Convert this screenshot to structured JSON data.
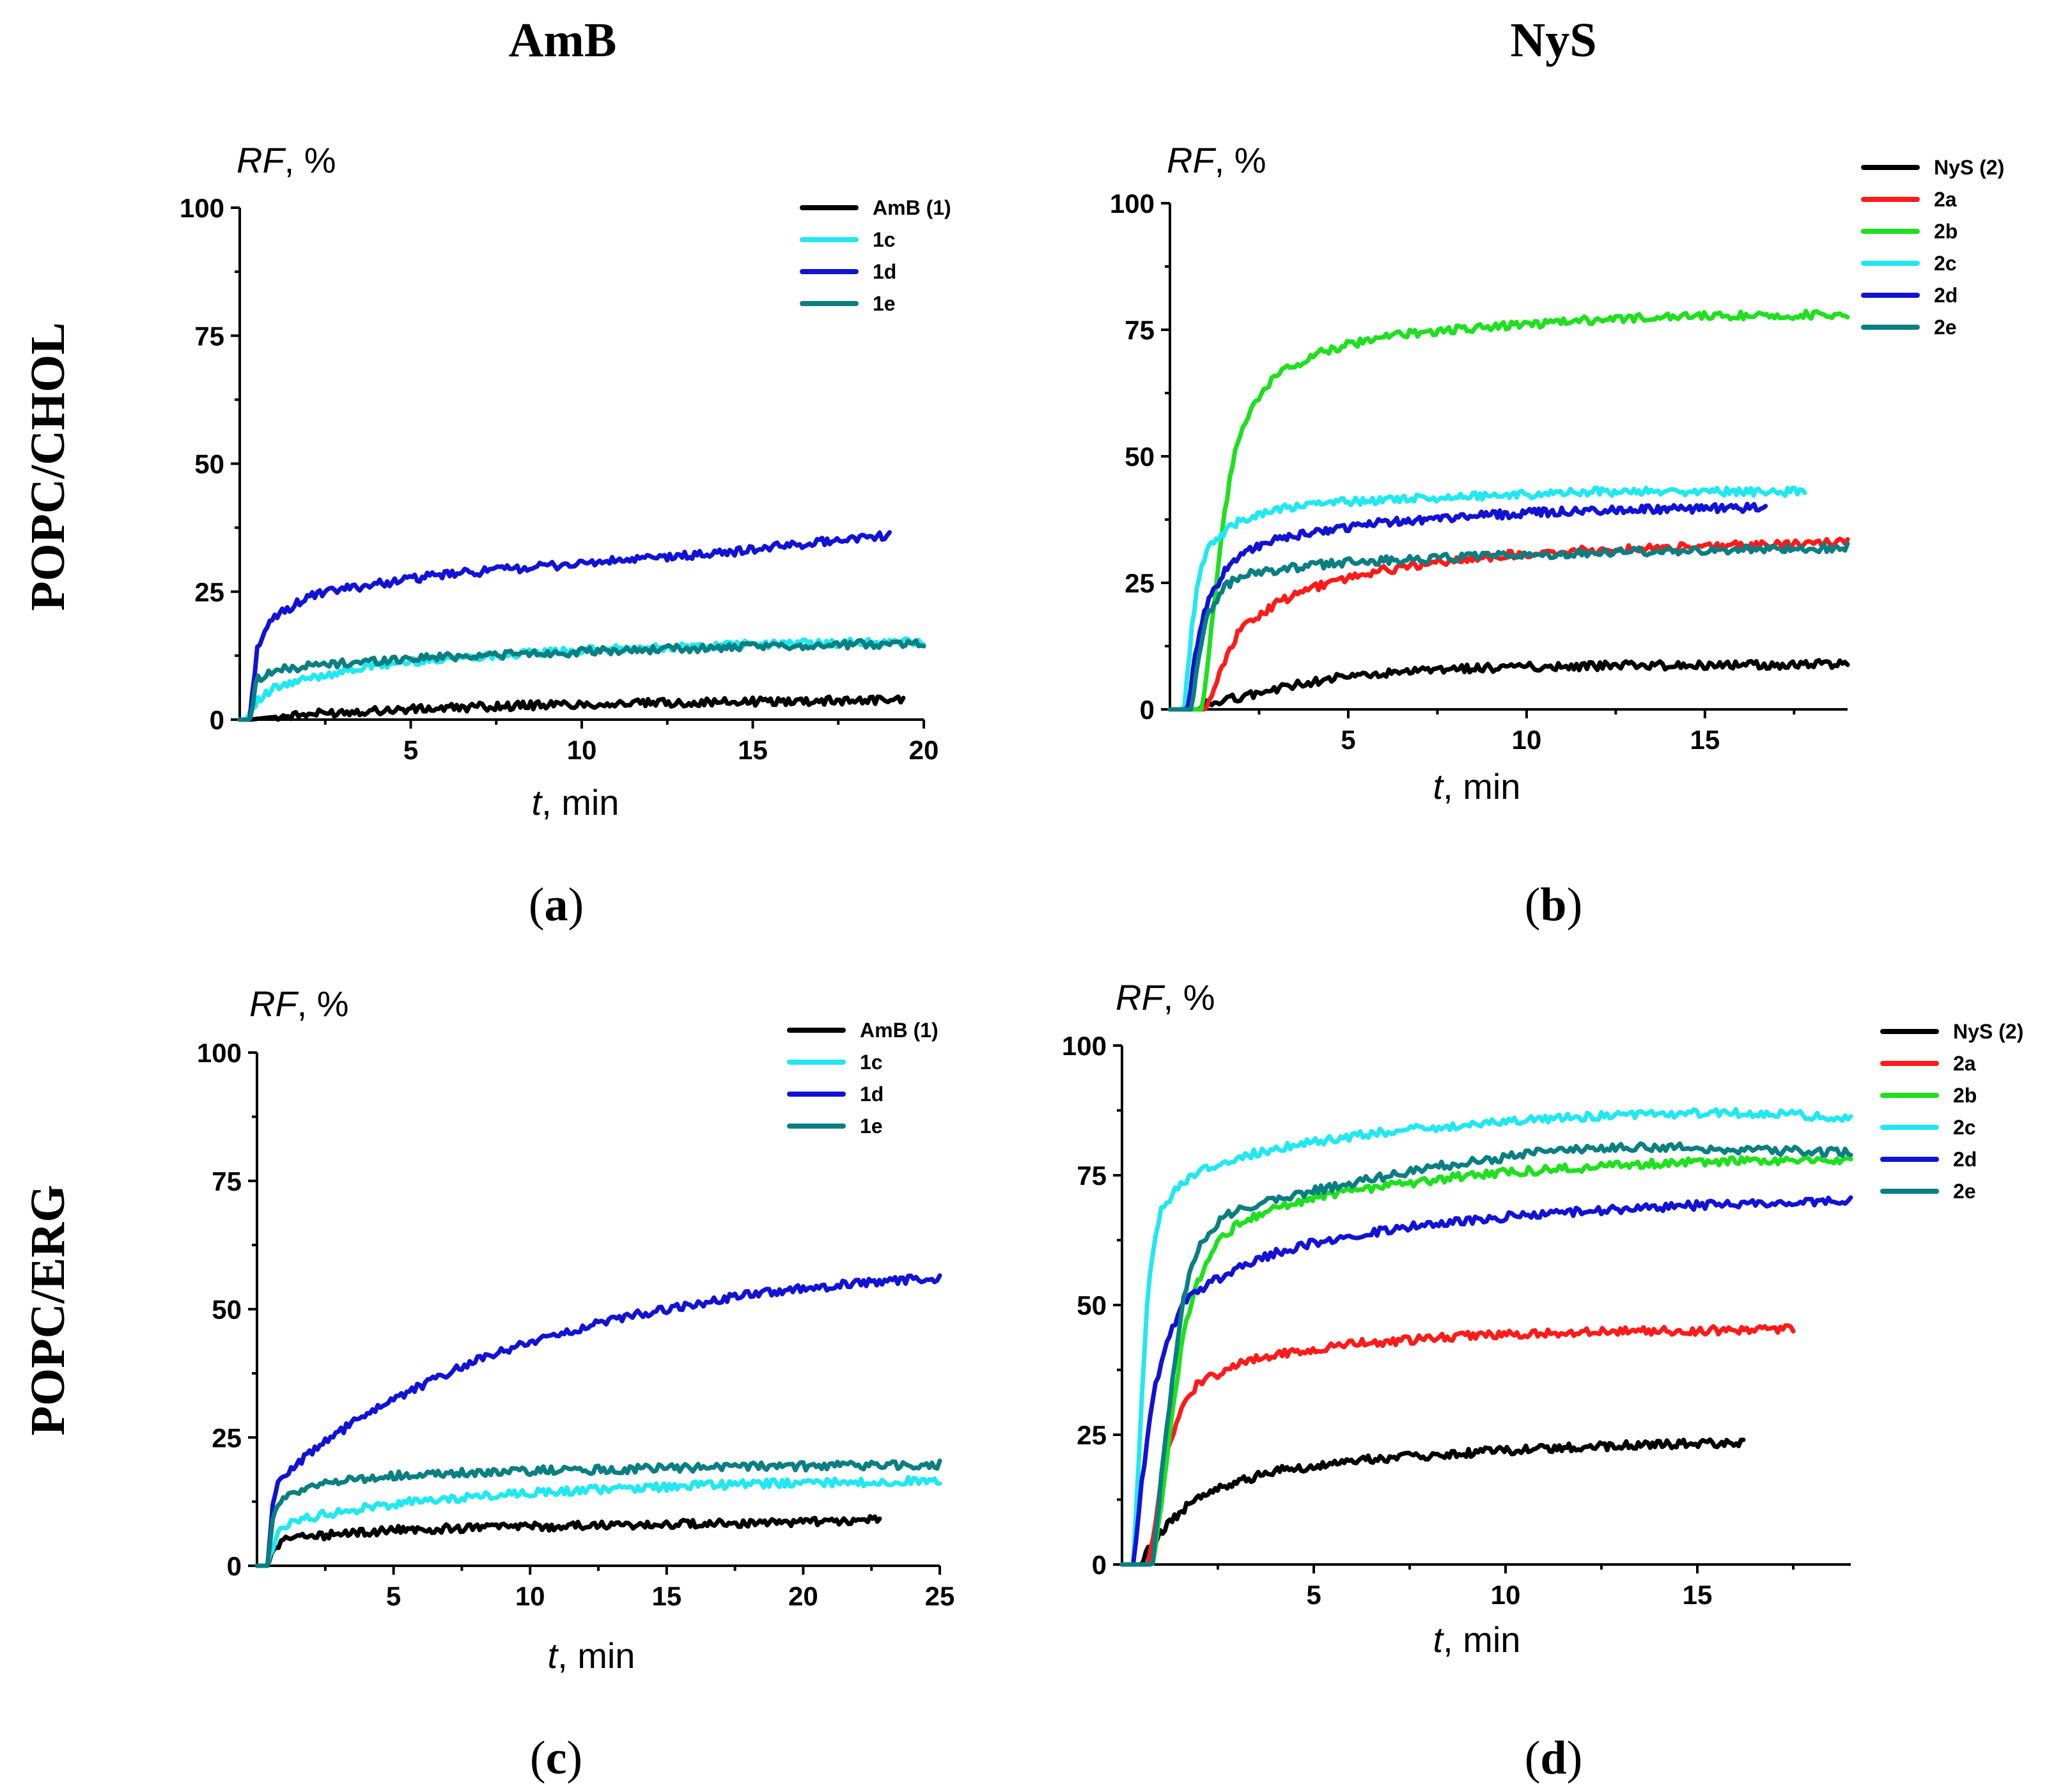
{
  "figure": {
    "column_titles": [
      "AmB",
      "NyS"
    ],
    "row_titles": [
      "POPC/CHOL",
      "POPC/ERG"
    ]
  },
  "colors": {
    "black": "#000000",
    "red": "#ff1a1a",
    "green": "#1ee01e",
    "cyan": "#21e8f0",
    "blue": "#1212d6",
    "teal": "#0a7f82"
  },
  "chart_data": [
    {
      "id": "a",
      "panel_label": "a",
      "type": "line",
      "ylabel_italic": "RF",
      "ylabel_rest": ", %",
      "xlabel_italic": "t",
      "xlabel_rest": ", min",
      "xlim": [
        0,
        20
      ],
      "ylim": [
        0,
        100
      ],
      "xticks": [
        5,
        10,
        15,
        20
      ],
      "yticks": [
        0,
        25,
        50,
        75,
        100
      ],
      "legend_position": "top-right",
      "series": [
        {
          "name": "AmB (1)",
          "color": "black",
          "x": [
            0,
            0.3,
            1,
            2,
            3,
            4,
            5,
            6,
            7,
            8,
            9,
            10,
            11,
            12,
            13,
            14,
            15,
            16,
            17,
            18,
            19,
            19.4
          ],
          "values": [
            0,
            0,
            0.5,
            1,
            1.5,
            1.8,
            2,
            2.2,
            2.5,
            2.7,
            2.9,
            3,
            3.1,
            3.2,
            3.3,
            3.4,
            3.5,
            3.6,
            3.7,
            3.8,
            3.9,
            4
          ]
        },
        {
          "name": "1c",
          "color": "cyan",
          "x": [
            0,
            0.2,
            0.4,
            1,
            2,
            3,
            4,
            5,
            6,
            8,
            10,
            12,
            14,
            16,
            18,
            20
          ],
          "values": [
            0,
            0,
            3,
            6,
            8,
            9.5,
            10.5,
            11.3,
            12,
            12.8,
            13.5,
            14,
            14.5,
            14.8,
            15,
            15.2
          ]
        },
        {
          "name": "1d",
          "color": "blue",
          "x": [
            0,
            0.3,
            0.5,
            1,
            2,
            3,
            4,
            5,
            6,
            8,
            10,
            12,
            14,
            16,
            18,
            19
          ],
          "values": [
            0,
            0,
            14,
            20,
            24,
            25.5,
            26.5,
            27.5,
            28.3,
            29.5,
            30.5,
            31.5,
            32.5,
            34,
            35.5,
            36
          ]
        },
        {
          "name": "1e",
          "color": "teal",
          "x": [
            0,
            0.3,
            0.5,
            1,
            2,
            3,
            4,
            5,
            6,
            8,
            10,
            12,
            14,
            16,
            18,
            20
          ],
          "values": [
            0,
            0,
            8,
            9.5,
            10.5,
            11,
            11.5,
            12,
            12.3,
            12.8,
            13.2,
            13.7,
            14,
            14.4,
            14.7,
            15
          ]
        }
      ]
    },
    {
      "id": "b",
      "panel_label": "b",
      "type": "line",
      "ylabel_italic": "RF",
      "ylabel_rest": ", %",
      "xlabel_italic": "t",
      "xlabel_rest": ", min",
      "xlim": [
        0,
        19
      ],
      "ylim": [
        0,
        100
      ],
      "xticks": [
        5,
        10,
        15
      ],
      "yticks": [
        0,
        25,
        50,
        75,
        100
      ],
      "legend_position": "top-right",
      "series": [
        {
          "name": "NyS (2)",
          "color": "black",
          "x": [
            0,
            0.8,
            1,
            2,
            3,
            4,
            5,
            6,
            7,
            8,
            9,
            10,
            11,
            12,
            13,
            14,
            15,
            16,
            17,
            18,
            19
          ],
          "values": [
            0,
            0,
            1,
            2.5,
            4,
            5.5,
            6.5,
            7,
            7.5,
            8,
            8.2,
            8.4,
            8.5,
            8.6,
            8.7,
            8.7,
            8.8,
            8.8,
            8.8,
            8.9,
            9
          ]
        },
        {
          "name": "2a",
          "color": "red",
          "x": [
            0,
            1,
            1.3,
            1.6,
            2,
            3,
            4,
            5,
            6,
            7,
            8,
            9,
            10,
            11,
            12,
            13,
            14,
            15,
            16,
            17,
            18,
            19
          ],
          "values": [
            0,
            0,
            5,
            11,
            16,
            21,
            24,
            26,
            27.5,
            28.5,
            29.5,
            30.2,
            30.8,
            31.2,
            31.5,
            31.8,
            32,
            32.2,
            32.4,
            32.6,
            32.7,
            33
          ]
        },
        {
          "name": "2b",
          "color": "green",
          "x": [
            0,
            0.9,
            1.2,
            1.5,
            1.8,
            2,
            2.5,
            3,
            4,
            5,
            6,
            7,
            8,
            9,
            10,
            11,
            12,
            13,
            14,
            15,
            16,
            17,
            18,
            19
          ],
          "values": [
            0,
            0,
            18,
            38,
            50,
            55,
            62,
            66,
            70,
            72,
            73.5,
            74.5,
            75,
            75.5,
            76,
            76.5,
            77,
            77.3,
            77.5,
            77.7,
            77.8,
            77.9,
            78,
            78
          ]
        },
        {
          "name": "2c",
          "color": "cyan",
          "x": [
            0,
            0.4,
            0.6,
            0.8,
            1,
            1.5,
            2,
            3,
            4,
            5,
            6,
            8,
            10,
            12,
            14,
            16,
            17.8
          ],
          "values": [
            0,
            0,
            15,
            26,
            31,
            35,
            37.5,
            39.5,
            40.5,
            41,
            41.5,
            42,
            42.5,
            43,
            43,
            43,
            43
          ]
        },
        {
          "name": "2d",
          "color": "blue",
          "x": [
            0,
            0.5,
            0.7,
            1,
            1.5,
            2,
            3,
            4,
            5,
            6,
            8,
            10,
            12,
            14,
            16,
            16.7
          ],
          "values": [
            0,
            0,
            10,
            20,
            27,
            31,
            33.5,
            35,
            36,
            37,
            38,
            38.8,
            39.3,
            39.6,
            39.8,
            40
          ]
        },
        {
          "name": "2e",
          "color": "teal",
          "x": [
            0,
            0.6,
            0.8,
            1,
            1.5,
            2,
            3,
            4,
            5,
            6,
            8,
            10,
            12,
            14,
            16,
            18,
            19
          ],
          "values": [
            0,
            0,
            10,
            18,
            24,
            26.5,
            27.5,
            28.5,
            29,
            29.5,
            30,
            30.5,
            31,
            31.3,
            31.6,
            31.8,
            32
          ]
        }
      ]
    },
    {
      "id": "c",
      "panel_label": "c",
      "type": "line",
      "ylabel_italic": "RF",
      "ylabel_rest": ", %",
      "xlabel_italic": "t",
      "xlabel_rest": ", min",
      "xlim": [
        0,
        25
      ],
      "ylim": [
        0,
        100
      ],
      "xticks": [
        5,
        10,
        15,
        20,
        25
      ],
      "yticks": [
        0,
        25,
        50,
        75,
        100
      ],
      "legend_position": "top-right",
      "series": [
        {
          "name": "AmB (1)",
          "color": "black",
          "x": [
            0,
            0.4,
            0.7,
            1,
            2,
            3,
            4,
            5,
            6,
            8,
            10,
            12,
            14,
            16,
            18,
            20,
            22,
            22.8
          ],
          "values": [
            0,
            0,
            4,
            5,
            5.8,
            6.2,
            6.6,
            6.9,
            7.1,
            7.4,
            7.6,
            7.8,
            8,
            8.2,
            8.4,
            8.6,
            8.8,
            8.9
          ]
        },
        {
          "name": "1c",
          "color": "cyan",
          "x": [
            0,
            0.4,
            0.7,
            1,
            2,
            3,
            4,
            5,
            6,
            8,
            10,
            12,
            14,
            16,
            18,
            20,
            22,
            24,
            25
          ],
          "values": [
            0,
            0,
            6,
            8,
            9.5,
            10.5,
            11.3,
            12,
            12.6,
            13.5,
            14.2,
            14.8,
            15.2,
            15.6,
            15.9,
            16.1,
            16.3,
            16.5,
            16.6
          ]
        },
        {
          "name": "1d",
          "color": "blue",
          "x": [
            0,
            0.4,
            0.6,
            1,
            2,
            3,
            4,
            5,
            6,
            7,
            8,
            9,
            10,
            11,
            12,
            13,
            14,
            15,
            16,
            17,
            18,
            19,
            20,
            21,
            22,
            23,
            24,
            25
          ],
          "values": [
            0,
            0,
            14,
            18,
            22,
            26,
            29.5,
            32.5,
            35,
            37.5,
            40,
            42,
            43.5,
            45,
            46.5,
            48,
            49,
            50,
            51,
            52,
            52.8,
            53.5,
            54,
            54.5,
            55,
            55.5,
            55.8,
            56
          ]
        },
        {
          "name": "1e",
          "color": "teal",
          "x": [
            0,
            0.4,
            0.6,
            1,
            2,
            3,
            4,
            5,
            6,
            8,
            10,
            12,
            14,
            16,
            18,
            20,
            22,
            24,
            25
          ],
          "values": [
            0,
            0,
            10,
            13.5,
            15.5,
            16.5,
            17,
            17.5,
            17.8,
            18.2,
            18.5,
            18.7,
            18.9,
            19.1,
            19.3,
            19.4,
            19.5,
            19.6,
            19.7
          ]
        }
      ]
    },
    {
      "id": "d",
      "panel_label": "d",
      "type": "line",
      "ylabel_italic": "RF",
      "ylabel_rest": ", %",
      "xlabel_italic": "t",
      "xlabel_rest": ", min",
      "xlim": [
        0,
        19
      ],
      "ylim": [
        0,
        100
      ],
      "xticks": [
        5,
        10,
        15
      ],
      "yticks": [
        0,
        25,
        50,
        75,
        100
      ],
      "legend_position": "top-right",
      "series": [
        {
          "name": "NyS (2)",
          "color": "black",
          "x": [
            0,
            0.5,
            0.7,
            1,
            1.5,
            2,
            3,
            4,
            5,
            6,
            7,
            8,
            9,
            10,
            11,
            12,
            13,
            14,
            15,
            16.2
          ],
          "values": [
            0,
            0,
            3,
            6,
            10,
            13,
            16,
            18,
            19,
            20,
            20.5,
            21,
            21.5,
            22,
            22.3,
            22.6,
            22.9,
            23.1,
            23.3,
            23.5
          ]
        },
        {
          "name": "2a",
          "color": "red",
          "x": [
            0,
            0.7,
            1,
            1.3,
            1.6,
            2,
            3,
            4,
            5,
            6,
            7,
            8,
            9,
            10,
            11,
            12,
            13,
            14,
            15,
            16,
            17.5
          ],
          "values": [
            0,
            0,
            15,
            25,
            31,
            35,
            38.5,
            40.5,
            41.5,
            42.5,
            43,
            43.5,
            44,
            44.2,
            44.5,
            44.7,
            44.9,
            45,
            45.1,
            45.2,
            45.3
          ]
        },
        {
          "name": "2b",
          "color": "green",
          "x": [
            0,
            0.8,
            1,
            1.3,
            1.6,
            2,
            2.5,
            3,
            4,
            5,
            6,
            7,
            8,
            9,
            10,
            11,
            12,
            13,
            14,
            15,
            16,
            17,
            18,
            19
          ],
          "values": [
            0,
            0,
            10,
            28,
            45,
            55,
            62,
            65.5,
            68.5,
            70.5,
            72,
            73,
            74,
            75,
            75.5,
            76,
            76.5,
            77,
            77.3,
            77.5,
            77.7,
            77.8,
            78,
            78
          ]
        },
        {
          "name": "2c",
          "color": "cyan",
          "x": [
            0,
            0.3,
            0.5,
            0.7,
            1,
            1.5,
            2,
            3,
            4,
            5,
            6,
            7,
            8,
            9,
            10,
            11,
            12,
            13,
            14,
            15,
            16,
            17,
            18,
            19
          ],
          "values": [
            0,
            0,
            30,
            55,
            68,
            73,
            76,
            78.5,
            80,
            81.5,
            82.5,
            83.5,
            84.2,
            84.8,
            85.3,
            85.8,
            86.2,
            86.5,
            86.8,
            87,
            87,
            87,
            86.5,
            86
          ]
        },
        {
          "name": "2d",
          "color": "blue",
          "x": [
            0,
            0.3,
            0.5,
            0.8,
            1.2,
            1.6,
            2,
            3,
            4,
            5,
            6,
            7,
            8,
            9,
            10,
            11,
            12,
            13,
            14,
            15,
            16,
            17,
            18,
            19
          ],
          "values": [
            0,
            0,
            15,
            32,
            44,
            50,
            53,
            57,
            60,
            62,
            63.5,
            64.5,
            65.5,
            66.3,
            67,
            67.6,
            68.1,
            68.5,
            68.9,
            69.2,
            69.5,
            69.8,
            70,
            70
          ]
        },
        {
          "name": "2e",
          "color": "teal",
          "x": [
            0,
            0.8,
            1,
            1.3,
            1.6,
            2,
            2.5,
            3,
            4,
            5,
            6,
            7,
            8,
            9,
            10,
            11,
            12,
            13,
            14,
            15,
            16,
            17,
            18,
            19
          ],
          "values": [
            0,
            0,
            15,
            35,
            52,
            61,
            66,
            68.5,
            70.5,
            72,
            73.5,
            75,
            76.5,
            77.5,
            78.5,
            79.5,
            80.2,
            80.5,
            80.5,
            80.3,
            80,
            79.8,
            79.6,
            79.5
          ]
        }
      ]
    }
  ]
}
